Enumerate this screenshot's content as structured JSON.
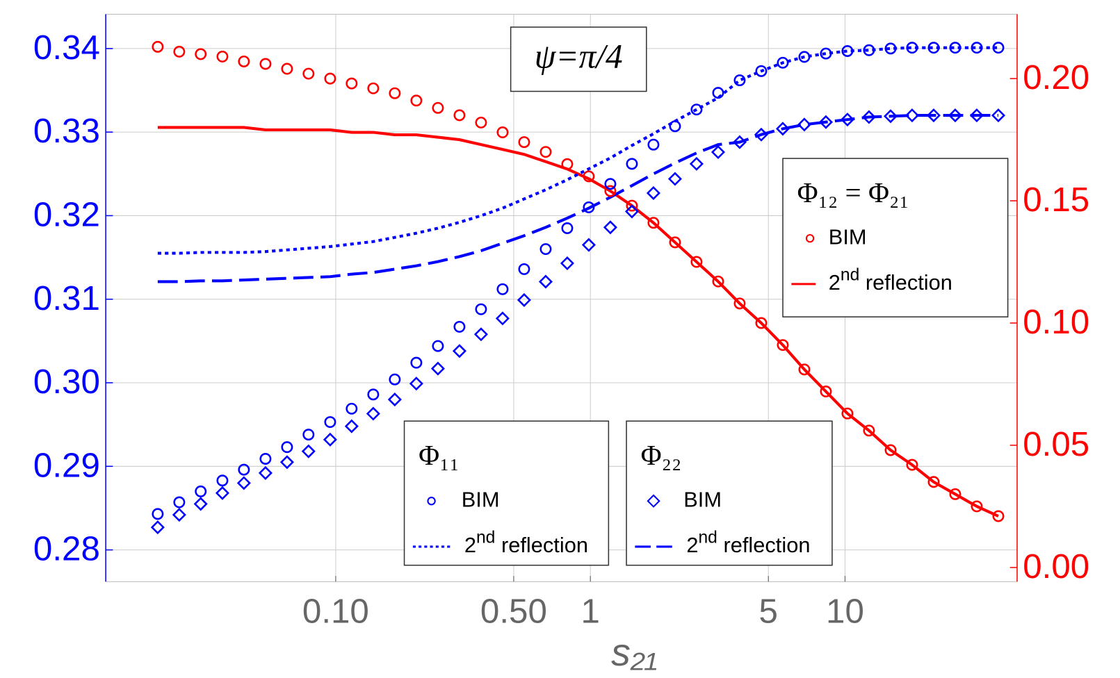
{
  "chart_data": {
    "type": "line",
    "annotation": "ψ=π/4",
    "x_label": "s₂₁",
    "xscale": "log",
    "grid": true,
    "xlim": [
      0.0125,
      47.4
    ],
    "xticks": [
      {
        "value": 0.1,
        "label": "0.10"
      },
      {
        "value": 0.5,
        "label": "0.50"
      },
      1,
      5,
      10
    ],
    "ylim": [
      0.2762,
      0.3441
    ],
    "yticks": [
      0.28,
      0.29,
      {
        "value": 0.3,
        "label": "0.30"
      },
      0.31,
      0.32,
      0.33,
      0.34
    ],
    "y_color": "#0000ff",
    "y2lim": [
      -0.0058,
      0.2263
    ],
    "y2ticks": [
      {
        "value": 0,
        "label": "0.00"
      },
      0.05,
      {
        "value": 0.1,
        "label": "0.10"
      },
      0.15,
      {
        "value": 0.2,
        "label": "0.20"
      }
    ],
    "y2_color": "#ff0000",
    "x": [
      0.02,
      0.0243,
      0.0295,
      0.0359,
      0.0436,
      0.053,
      0.0644,
      0.0782,
      0.0951,
      0.1155,
      0.1404,
      0.1706,
      0.2073,
      0.252,
      0.3062,
      0.3721,
      0.4522,
      0.5495,
      0.6678,
      0.8114,
      0.9858,
      1.198,
      1.456,
      1.769,
      2.15,
      2.612,
      3.175,
      3.858,
      4.688,
      5.697,
      6.922,
      8.412,
      10.22,
      12.42,
      15.1,
      18.34,
      22.29,
      27.08,
      32.91,
      40.0
    ],
    "groups": [
      {
        "title": "Φ₁₂ = Φ₂₁",
        "series": [
          {
            "name": "BIM",
            "color": "#ff0000",
            "style": "circle",
            "axis": "y2",
            "values": [
              0.213,
              0.211,
              0.21,
              0.209,
              0.207,
              0.206,
              0.204,
              0.202,
              0.2,
              0.198,
              0.196,
              0.194,
              0.191,
              0.188,
              0.185,
              0.182,
              0.178,
              0.174,
              0.17,
              0.165,
              0.16,
              0.154,
              0.148,
              0.141,
              0.133,
              0.125,
              0.117,
              0.108,
              0.1,
              0.091,
              0.081,
              0.072,
              0.063,
              0.056,
              0.048,
              0.042,
              0.035,
              0.03,
              0.025,
              0.021
            ]
          },
          {
            "name": "2nd reflection",
            "color": "#ff0000",
            "style": "solid",
            "axis": "y2",
            "values": [
              0.18,
              0.18,
              0.18,
              0.18,
              0.18,
              0.179,
              0.179,
              0.179,
              0.179,
              0.178,
              0.178,
              0.177,
              0.177,
              0.176,
              0.175,
              0.173,
              0.171,
              0.169,
              0.166,
              0.163,
              0.159,
              0.154,
              0.148,
              0.141,
              0.133,
              0.125,
              0.117,
              0.108,
              0.1,
              0.091,
              0.081,
              0.072,
              0.063,
              0.056,
              0.048,
              0.042,
              0.035,
              0.03,
              0.025,
              0.021
            ]
          }
        ]
      },
      {
        "title": "Φ₁₁",
        "series": [
          {
            "name": "BIM",
            "color": "#0000ff",
            "style": "circle",
            "axis": "y",
            "values": [
              0.2843,
              0.2857,
              0.287,
              0.2883,
              0.2896,
              0.2909,
              0.2923,
              0.2938,
              0.2953,
              0.2969,
              0.2986,
              0.3004,
              0.3024,
              0.3044,
              0.3067,
              0.3088,
              0.3112,
              0.3136,
              0.316,
              0.3185,
              0.321,
              0.3238,
              0.3262,
              0.3285,
              0.3307,
              0.3327,
              0.3347,
              0.3362,
              0.3373,
              0.3383,
              0.339,
              0.3394,
              0.3397,
              0.3398,
              0.34,
              0.3401,
              0.3401,
              0.3401,
              0.3401,
              0.3401
            ]
          },
          {
            "name": "2nd reflection",
            "color": "#0000ff",
            "style": "dotted",
            "axis": "y",
            "values": [
              0.3155,
              0.3155,
              0.3156,
              0.3156,
              0.3156,
              0.3157,
              0.3159,
              0.3161,
              0.3163,
              0.3166,
              0.3169,
              0.3174,
              0.3179,
              0.3185,
              0.3192,
              0.32,
              0.3209,
              0.322,
              0.3231,
              0.3243,
              0.3256,
              0.3269,
              0.3284,
              0.3298,
              0.3313,
              0.3327,
              0.3341,
              0.3362,
              0.3373,
              0.3383,
              0.339,
              0.3394,
              0.3397,
              0.3398,
              0.34,
              0.3401,
              0.3401,
              0.3401,
              0.3401,
              0.3401
            ]
          }
        ]
      },
      {
        "title": "Φ₂₂",
        "series": [
          {
            "name": "BIM",
            "color": "#0000ff",
            "style": "diamond",
            "axis": "y",
            "values": [
              0.2827,
              0.2842,
              0.2855,
              0.2868,
              0.288,
              0.2892,
              0.2905,
              0.2918,
              0.2932,
              0.2948,
              0.2963,
              0.298,
              0.2999,
              0.3017,
              0.3038,
              0.3058,
              0.3077,
              0.3099,
              0.3121,
              0.3143,
              0.3165,
              0.3186,
              0.3205,
              0.3227,
              0.3244,
              0.3262,
              0.3276,
              0.3288,
              0.3297,
              0.3304,
              0.3309,
              0.3312,
              0.3315,
              0.3318,
              0.3319,
              0.332,
              0.332,
              0.332,
              0.332,
              0.332
            ]
          },
          {
            "name": "2nd reflection",
            "color": "#0000ff",
            "style": "dashed",
            "axis": "y",
            "values": [
              0.3121,
              0.3121,
              0.3122,
              0.3122,
              0.3123,
              0.3124,
              0.3125,
              0.3126,
              0.3127,
              0.313,
              0.3132,
              0.3136,
              0.314,
              0.3145,
              0.3151,
              0.3158,
              0.3167,
              0.3176,
              0.3186,
              0.3197,
              0.3209,
              0.3222,
              0.3236,
              0.325,
              0.3263,
              0.3275,
              0.3285,
              0.3288,
              0.3297,
              0.3304,
              0.3309,
              0.3312,
              0.3315,
              0.3318,
              0.3319,
              0.332,
              0.332,
              0.332,
              0.332,
              0.332
            ]
          }
        ]
      }
    ]
  }
}
